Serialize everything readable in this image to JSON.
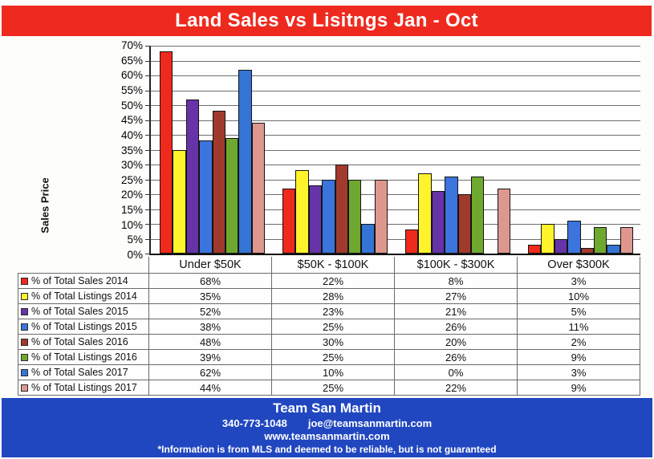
{
  "header": {
    "title": "Land Sales vs Lisitngs Jan - Oct"
  },
  "colors": {
    "banner_red": "#ee2a1e",
    "footer_blue": "#2147c0",
    "axis": "#111111",
    "gridline": "#6e6e6e"
  },
  "chart_data": {
    "type": "bar",
    "title": "Land Sales vs Lisitngs Jan - Oct",
    "xlabel": "",
    "ylabel": "Sales Price",
    "ylim": [
      0,
      70
    ],
    "ytick_step": 5,
    "value_suffix": "%",
    "grid": true,
    "legend_position": "table-left",
    "categories": [
      "Under $50K",
      "$50K - $100K",
      "$100K - $300K",
      "Over $300K"
    ],
    "series": [
      {
        "name": "% of Total Sales 2014",
        "color": "#f0291d",
        "values": [
          68,
          22,
          8,
          3
        ]
      },
      {
        "name": "% of Total Listings 2014",
        "color": "#fff32b",
        "values": [
          35,
          28,
          27,
          10
        ]
      },
      {
        "name": "% of Total Sales 2015",
        "color": "#6633a8",
        "values": [
          52,
          23,
          21,
          5
        ]
      },
      {
        "name": "% of Total Listings 2015",
        "color": "#3b74dc",
        "values": [
          38,
          25,
          26,
          11
        ]
      },
      {
        "name": "% of Total Sales 2016",
        "color": "#a03a2d",
        "values": [
          48,
          30,
          20,
          2
        ]
      },
      {
        "name": "% of Total Listings 2016",
        "color": "#6fa82f",
        "values": [
          39,
          25,
          26,
          9
        ]
      },
      {
        "name": "% of Total Sales 2017",
        "color": "#3474d4",
        "values": [
          62,
          10,
          0,
          3
        ]
      },
      {
        "name": "% of Total Listings 2017",
        "color": "#de978f",
        "values": [
          44,
          25,
          22,
          9
        ]
      }
    ]
  },
  "footer": {
    "team": "Team San Martin",
    "phone": "340-773-1048",
    "email": "joe@teamsanmartin.com",
    "website": "www.teamsanmartin.com",
    "disclaimer": "*Information is from MLS and deemed to be reliable, but is not guaranteed"
  }
}
